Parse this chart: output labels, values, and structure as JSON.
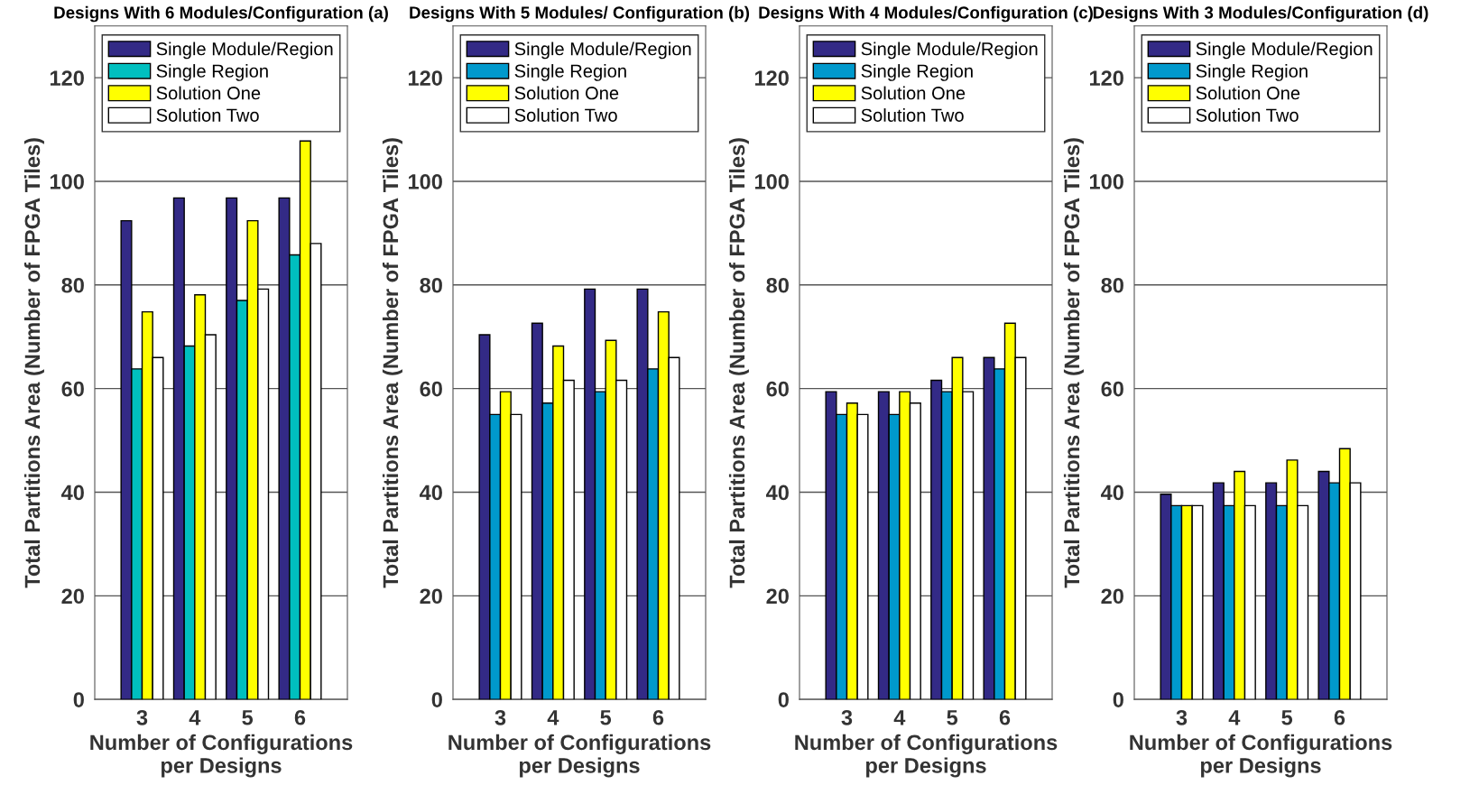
{
  "chart_data": [
    {
      "type": "bar",
      "title": "Designs With 6 Modules/Configuration (a)",
      "xlabel": "Number of Configurations\nper Designs",
      "ylabel": "Total Partitions Area (Number of FPGA Tiles)",
      "categories": [
        "3",
        "4",
        "5",
        "6"
      ],
      "ylim": [
        0,
        130
      ],
      "yticks": [
        0,
        20,
        40,
        60,
        80,
        100,
        120
      ],
      "grid": "y",
      "legend": "top",
      "series": [
        {
          "name": "Single Module/Region",
          "color": "#332a86",
          "values": [
            92.4,
            96.8,
            96.8,
            96.8
          ]
        },
        {
          "name": "Single Region",
          "color": "#00bfbf",
          "values": [
            63.8,
            68.2,
            77,
            85.8
          ]
        },
        {
          "name": "Solution One",
          "color": "#ffff00",
          "values": [
            74.8,
            78.1,
            92.4,
            107.8
          ]
        },
        {
          "name": "Solution Two",
          "color": "#ffffff",
          "values": [
            66,
            70.4,
            79.2,
            88
          ]
        }
      ]
    },
    {
      "type": "bar",
      "title": "Designs With 5 Modules/ Configuration (b)",
      "xlabel": "Number of Configurations\nper Designs",
      "ylabel": "Total Partitions Area (Number of FPGA Tiles)",
      "categories": [
        "3",
        "4",
        "5",
        "6"
      ],
      "ylim": [
        0,
        130
      ],
      "yticks": [
        0,
        20,
        40,
        60,
        80,
        100,
        120
      ],
      "grid": "y",
      "legend": "top",
      "series": [
        {
          "name": "Single Module/Region",
          "color": "#332a86",
          "values": [
            70.4,
            72.6,
            79.2,
            79.2
          ]
        },
        {
          "name": "Single Region",
          "color": "#0099cc",
          "values": [
            55,
            57.2,
            59.4,
            63.8
          ]
        },
        {
          "name": "Solution One",
          "color": "#ffff00",
          "values": [
            59.4,
            68.2,
            69.3,
            74.8
          ]
        },
        {
          "name": "Solution Two",
          "color": "#ffffff",
          "values": [
            55,
            61.6,
            61.6,
            66
          ]
        }
      ]
    },
    {
      "type": "bar",
      "title": "Designs With 4 Modules/Configuration (c)",
      "xlabel": "Number of Configurations\nper Designs",
      "ylabel": "Total Partitions Area (Number of FPGA Tiles)",
      "categories": [
        "3",
        "4",
        "5",
        "6"
      ],
      "ylim": [
        0,
        130
      ],
      "yticks": [
        0,
        20,
        40,
        60,
        80,
        100,
        120
      ],
      "grid": "y",
      "legend": "top",
      "series": [
        {
          "name": "Single Module/Region",
          "color": "#332a86",
          "values": [
            59.4,
            59.4,
            61.6,
            66
          ]
        },
        {
          "name": "Single Region",
          "color": "#0099cc",
          "values": [
            55,
            55,
            59.4,
            63.8
          ]
        },
        {
          "name": "Solution One",
          "color": "#ffff00",
          "values": [
            57.2,
            59.4,
            66,
            72.6
          ]
        },
        {
          "name": "Solution Two",
          "color": "#ffffff",
          "values": [
            55,
            57.2,
            59.4,
            66
          ]
        }
      ]
    },
    {
      "type": "bar",
      "title": "Designs With 3 Modules/Configuration (d)",
      "xlabel": "Number of Configurations\nper Designs",
      "ylabel": "Total Partitions Area (Number of FPGA Tiles)",
      "categories": [
        "3",
        "4",
        "5",
        "6"
      ],
      "ylim": [
        0,
        130
      ],
      "yticks": [
        0,
        20,
        40,
        60,
        80,
        100,
        120
      ],
      "grid": "y",
      "legend": "top",
      "series": [
        {
          "name": "Single Module/Region",
          "color": "#332a86",
          "values": [
            39.6,
            41.8,
            41.8,
            44
          ]
        },
        {
          "name": "Single Region",
          "color": "#0099cc",
          "values": [
            37.4,
            37.4,
            37.4,
            41.8
          ]
        },
        {
          "name": "Solution One",
          "color": "#ffff00",
          "values": [
            37.4,
            44,
            46.2,
            48.4
          ]
        },
        {
          "name": "Solution Two",
          "color": "#ffffff",
          "values": [
            37.4,
            37.4,
            37.4,
            41.8
          ]
        }
      ]
    }
  ]
}
